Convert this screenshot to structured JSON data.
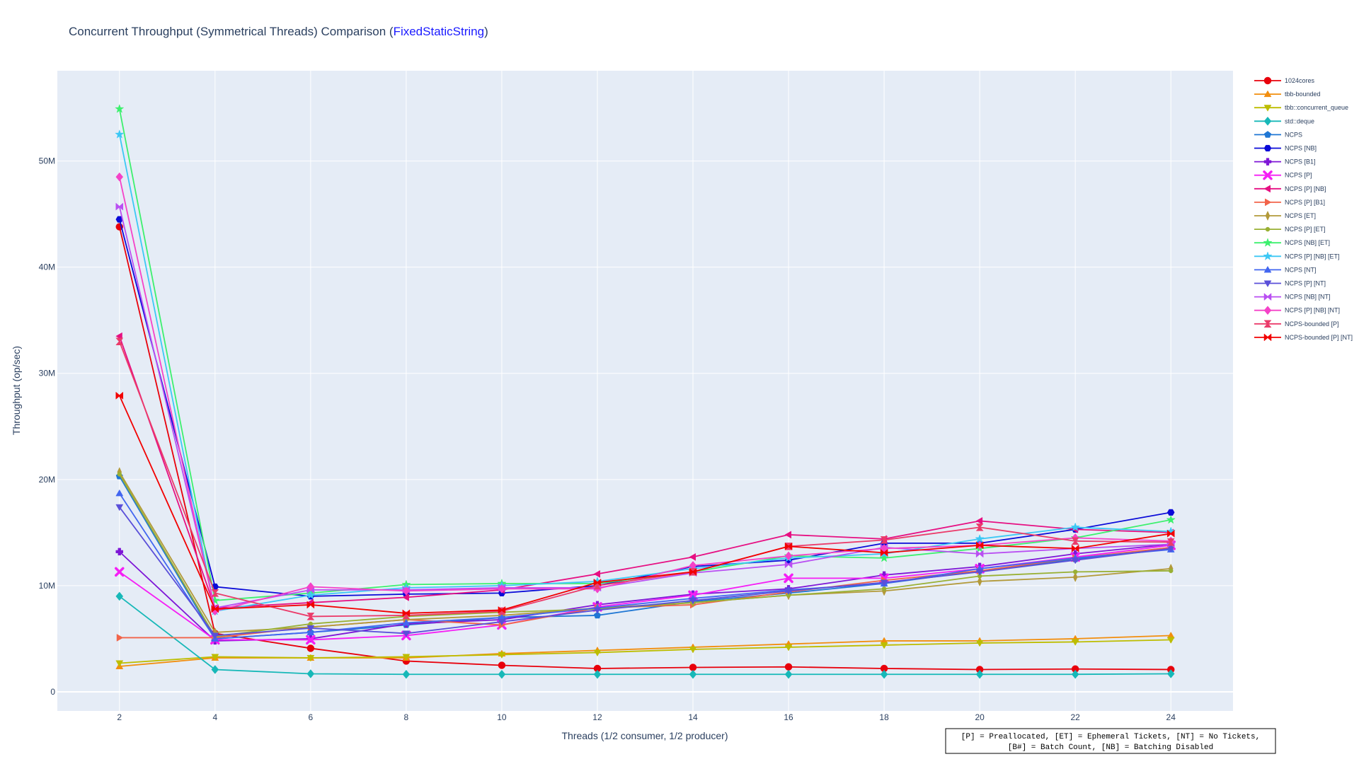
{
  "chart_data": {
    "type": "line",
    "title_main": "Concurrent Throughput (Symmetrical Threads) Comparison (",
    "title_highlight": "FixedStaticString",
    "title_close": ")",
    "xlabel": "Threads (1/2 consumer, 1/2 producer)",
    "ylabel": "Throughput (op/sec)",
    "x": [
      2,
      4,
      6,
      8,
      10,
      12,
      14,
      16,
      18,
      20,
      22,
      24
    ],
    "xlim": [
      0.7,
      25.3
    ],
    "ylim": [
      -1.8,
      58.5
    ],
    "y_unit": "M",
    "x_ticks": [
      "2",
      "4",
      "6",
      "8",
      "10",
      "12",
      "14",
      "16",
      "18",
      "20",
      "22",
      "24"
    ],
    "y_ticks": [
      "0",
      "10M",
      "20M",
      "30M",
      "40M",
      "50M"
    ],
    "legend_position": "right",
    "grid": true,
    "annotation_lines": [
      "[P] = Preallocated, [ET] = Ephemeral Tickets, [NT] = No Tickets,",
      "[B#] = Batch Count, [NB] = Batching Disabled"
    ],
    "series": [
      {
        "name": "1024cores",
        "color": "#e8000b",
        "marker": "circle",
        "values": [
          43.8,
          5.5,
          4.1,
          2.9,
          2.5,
          2.2,
          2.3,
          2.35,
          2.2,
          2.1,
          2.15,
          2.1
        ]
      },
      {
        "name": "tbb-bounded",
        "color": "#f28e0e",
        "marker": "triangle-up",
        "values": [
          2.4,
          3.2,
          3.2,
          3.2,
          3.6,
          3.9,
          4.2,
          4.5,
          4.8,
          4.8,
          5.0,
          5.3
        ]
      },
      {
        "name": "tbb::concurrent_queue",
        "color": "#bdbd00",
        "marker": "triangle-down",
        "values": [
          2.7,
          3.3,
          3.2,
          3.3,
          3.5,
          3.7,
          4.0,
          4.2,
          4.4,
          4.6,
          4.7,
          4.9
        ]
      },
      {
        "name": "std::deque",
        "color": "#17b8b8",
        "marker": "diamond",
        "values": [
          9.0,
          2.1,
          1.7,
          1.65,
          1.65,
          1.65,
          1.65,
          1.65,
          1.65,
          1.65,
          1.65,
          1.7
        ]
      },
      {
        "name": "NCPS",
        "color": "#1f77d4",
        "marker": "pentagon",
        "values": [
          20.3,
          5.0,
          5.6,
          6.3,
          7.0,
          7.2,
          8.5,
          9.3,
          10.2,
          11.4,
          12.5,
          13.6
        ]
      },
      {
        "name": "NCPS [NB]",
        "color": "#0a0ad8",
        "marker": "hexagon",
        "values": [
          44.5,
          9.9,
          9.0,
          9.2,
          9.3,
          10.0,
          11.8,
          12.4,
          14.0,
          14.0,
          15.3,
          16.9
        ]
      },
      {
        "name": "NCPS [B1]",
        "color": "#7e16d6",
        "marker": "cross",
        "values": [
          13.2,
          4.8,
          5.0,
          6.4,
          6.8,
          8.2,
          9.2,
          9.7,
          11.0,
          11.8,
          13.0,
          13.9
        ]
      },
      {
        "name": "NCPS [P]",
        "color": "#f51ef5",
        "marker": "x",
        "values": [
          11.3,
          4.9,
          4.9,
          5.3,
          6.3,
          8.0,
          9.1,
          10.7,
          10.7,
          11.6,
          12.7,
          13.8
        ]
      },
      {
        "name": "NCPS [P] [NB]",
        "color": "#e60f82",
        "marker": "triangle-left",
        "values": [
          33.5,
          7.9,
          8.4,
          8.9,
          9.6,
          11.1,
          12.7,
          14.8,
          14.4,
          16.1,
          15.3,
          15.0
        ]
      },
      {
        "name": "NCPS [P] [B1]",
        "color": "#f2644a",
        "marker": "triangle-right",
        "values": [
          5.1,
          5.1,
          6.1,
          6.8,
          6.3,
          7.9,
          8.2,
          9.4,
          10.5,
          11.4,
          12.6,
          13.6
        ]
      },
      {
        "name": "NCPS [ET]",
        "color": "#b39a3a",
        "marker": "thin-diamond",
        "values": [
          20.7,
          5.6,
          6.1,
          6.8,
          7.2,
          7.9,
          8.4,
          9.1,
          9.5,
          10.4,
          10.8,
          11.6
        ]
      },
      {
        "name": "NCPS [P] [ET]",
        "color": "#99b033",
        "marker": "circle-small",
        "values": [
          20.5,
          5.2,
          6.4,
          7.1,
          7.5,
          7.8,
          8.4,
          9.1,
          9.7,
          10.9,
          11.3,
          11.4
        ]
      },
      {
        "name": "NCPS [NB] [ET]",
        "color": "#3df06e",
        "marker": "star",
        "values": [
          54.9,
          8.6,
          9.3,
          10.1,
          10.2,
          10.2,
          11.3,
          12.8,
          12.6,
          13.5,
          14.5,
          16.2
        ]
      },
      {
        "name": "NCPS [P] [NB] [ET]",
        "color": "#3cc8f5",
        "marker": "star",
        "values": [
          52.5,
          7.6,
          9.1,
          9.8,
          10.0,
          10.4,
          11.6,
          12.6,
          13.0,
          14.4,
          15.5,
          15.1
        ]
      },
      {
        "name": "NCPS [NT]",
        "color": "#4266f0",
        "marker": "triangle-up",
        "values": [
          18.7,
          5.0,
          5.6,
          6.5,
          7.0,
          7.9,
          8.8,
          9.6,
          10.2,
          11.6,
          12.6,
          13.4
        ]
      },
      {
        "name": "NCPS [P] [NT]",
        "color": "#5a4fd9",
        "marker": "triangle-down",
        "values": [
          17.4,
          5.3,
          6.0,
          5.5,
          6.6,
          7.7,
          8.6,
          9.5,
          10.3,
          11.3,
          12.4,
          13.5
        ]
      },
      {
        "name": "NCPS [NB] [NT]",
        "color": "#b94ff2",
        "marker": "bowtie",
        "values": [
          45.7,
          7.9,
          9.6,
          9.6,
          9.8,
          9.8,
          11.2,
          12.0,
          13.6,
          13.0,
          13.5,
          13.9
        ]
      },
      {
        "name": "NCPS [P] [NB] [NT]",
        "color": "#f542c8",
        "marker": "diamond",
        "values": [
          48.5,
          7.6,
          9.9,
          9.5,
          9.7,
          9.7,
          11.9,
          12.8,
          13.5,
          13.8,
          14.5,
          14.2
        ]
      },
      {
        "name": "NCPS-bounded [P]",
        "color": "#eb3b6a",
        "marker": "hourglass",
        "values": [
          33.0,
          9.3,
          7.1,
          7.2,
          7.6,
          10.0,
          11.3,
          13.7,
          14.3,
          15.5,
          14.2,
          14.1
        ]
      },
      {
        "name": "NCPS-bounded [P] [NT]",
        "color": "#f20000",
        "marker": "bowtie",
        "values": [
          27.9,
          7.8,
          8.2,
          7.4,
          7.7,
          10.3,
          11.3,
          13.7,
          13.1,
          13.8,
          13.5,
          14.9
        ]
      }
    ]
  }
}
